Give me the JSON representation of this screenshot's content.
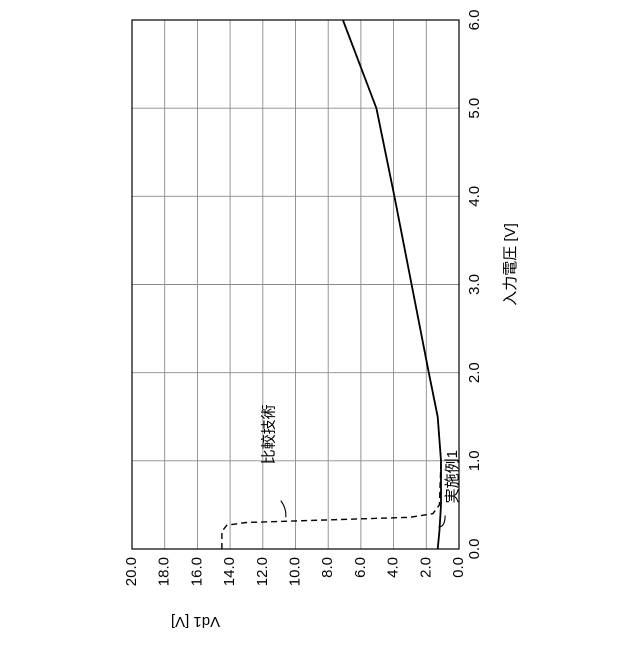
{
  "chart_data": {
    "type": "line",
    "orientation": "rotated 90° clockwise (x axis runs along the right edge, y axis along the bottom)",
    "xlabel": "入力電圧 [V]",
    "ylabel": "Vd1 [V]",
    "xlim": [
      0.0,
      6.0
    ],
    "ylim": [
      0.0,
      20.0
    ],
    "x_ticks": [
      "0.0",
      "1.0",
      "2.0",
      "3.0",
      "4.0",
      "5.0",
      "6.0"
    ],
    "y_ticks": [
      "0.0",
      "2.0",
      "4.0",
      "6.0",
      "8.0",
      "10.0",
      "12.0",
      "14.0",
      "16.0",
      "18.0",
      "20.0"
    ],
    "grid": true,
    "series": [
      {
        "name": "比較技術",
        "style": "dashed",
        "color": "#000000",
        "points": [
          [
            0.0,
            14.5
          ],
          [
            0.2,
            14.5
          ],
          [
            0.27,
            14.2
          ],
          [
            0.3,
            13.0
          ],
          [
            0.33,
            8.0
          ],
          [
            0.36,
            3.0
          ],
          [
            0.4,
            1.6
          ],
          [
            0.5,
            1.2
          ],
          [
            1.0,
            1.1
          ],
          [
            1.5,
            1.3
          ],
          [
            2.0,
            1.85
          ],
          [
            3.0,
            2.9
          ],
          [
            4.0,
            3.95
          ],
          [
            5.0,
            5.05
          ],
          [
            6.0,
            7.1
          ]
        ]
      },
      {
        "name": "実施例1",
        "style": "solid",
        "color": "#000000",
        "points": [
          [
            0.0,
            1.3
          ],
          [
            0.2,
            1.2
          ],
          [
            0.5,
            1.1
          ],
          [
            1.0,
            1.1
          ],
          [
            1.5,
            1.3
          ],
          [
            2.0,
            1.85
          ],
          [
            3.0,
            2.9
          ],
          [
            4.0,
            3.95
          ],
          [
            5.0,
            5.05
          ],
          [
            6.0,
            7.1
          ]
        ]
      }
    ],
    "annotations": [
      "比較技術",
      "実施例1"
    ]
  }
}
